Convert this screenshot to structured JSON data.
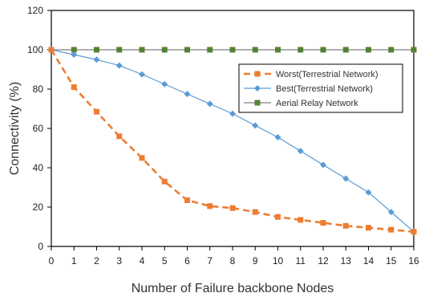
{
  "chart_data": {
    "type": "line",
    "title": "",
    "xlabel": "Number of Failure backbone Nodes",
    "ylabel": "Connectivity (%)",
    "x": [
      0,
      1,
      2,
      3,
      4,
      5,
      6,
      7,
      8,
      9,
      10,
      11,
      12,
      13,
      14,
      15,
      16
    ],
    "xlim": [
      0,
      16
    ],
    "ylim": [
      0,
      120
    ],
    "yticks": [
      0,
      20,
      40,
      60,
      80,
      100,
      120
    ],
    "grid": false,
    "legend_position": "right",
    "series": [
      {
        "name": "Worst(Terrestrial Network)",
        "color": "#ED7D31",
        "line_style": "dashed",
        "marker": "square",
        "values": [
          100,
          81,
          68.5,
          56,
          45,
          33,
          23.5,
          20.5,
          19.5,
          17.5,
          15,
          13.5,
          12,
          10.5,
          9.5,
          8.5,
          7.5
        ]
      },
      {
        "name": "Best(Terrestrial Network)",
        "color": "#5B9BD5",
        "line_style": "solid",
        "marker": "diamond",
        "values": [
          100,
          97.5,
          95,
          92,
          87.5,
          82.5,
          77.5,
          72.5,
          67.5,
          61.5,
          55.5,
          48.5,
          41.5,
          34.5,
          27.5,
          17.5,
          7.5
        ]
      },
      {
        "name": "Aerial Relay Network",
        "color": "#548235",
        "line_color": "#7F7F7F",
        "line_style": "solid",
        "marker": "square",
        "values": [
          100,
          100,
          100,
          100,
          100,
          100,
          100,
          100,
          100,
          100,
          100,
          100,
          100,
          100,
          100,
          100,
          100
        ]
      }
    ]
  }
}
